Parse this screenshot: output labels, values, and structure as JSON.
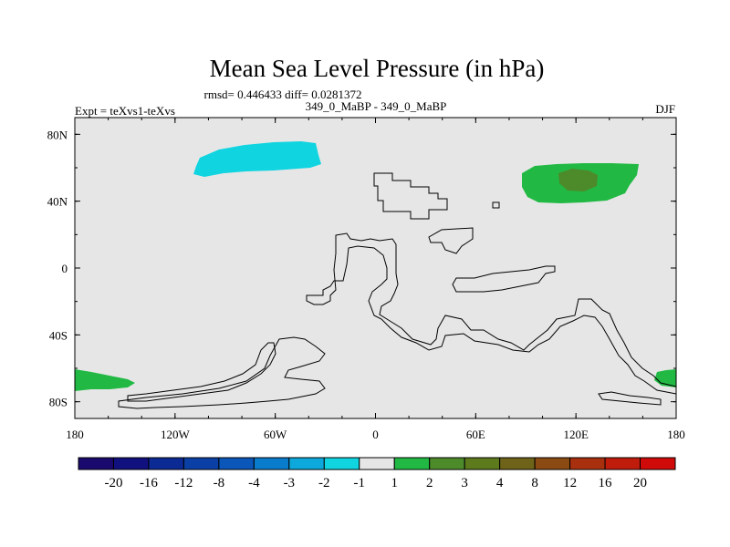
{
  "chart_data": {
    "type": "heatmap",
    "title": "Mean Sea Level Pressure (in hPa)",
    "stats_line": "rmsd= 0.446433 diff= 0.0281372",
    "left_label": "Expt = teXvs1-teXvs",
    "center_label": "349_0_MaBP - 349_0_MaBP",
    "right_label": "DJF",
    "x_ticks": [
      "180",
      "120W",
      "60W",
      "0",
      "60E",
      "120E",
      "180"
    ],
    "x_tick_values": [
      -180,
      -120,
      -60,
      0,
      60,
      120,
      180
    ],
    "y_ticks": [
      "80N",
      "40N",
      "0",
      "40S",
      "80S"
    ],
    "y_tick_values": [
      80,
      40,
      0,
      -40,
      -80
    ],
    "xlim": [
      -180,
      180
    ],
    "ylim": [
      -90,
      90
    ],
    "colorbar": {
      "levels": [
        "-20",
        "-16",
        "-12",
        "-8",
        "-4",
        "-3",
        "-2",
        "-1",
        "1",
        "2",
        "3",
        "4",
        "8",
        "12",
        "16",
        "20"
      ],
      "colors": [
        "#1a0a6e",
        "#10107e",
        "#0b2a94",
        "#0a3fa6",
        "#0b56b9",
        "#0a7ccc",
        "#0ea9dc",
        "#10d4e0",
        "#e6e6e6",
        "#21b944",
        "#4d8a2a",
        "#5d7a1c",
        "#6e6318",
        "#8a4a12",
        "#a8300e",
        "#c01c0c",
        "#d00a08"
      ]
    },
    "anomalies": [
      {
        "label": "negative anomaly over northern Pacific",
        "category": "-1",
        "color": "#10d4e0",
        "lon_range": [
          -110,
          -35
        ],
        "lat_range": [
          55,
          75
        ]
      },
      {
        "label": "positive anomaly over eastern Asia",
        "category": "2",
        "color": "#21b944",
        "lon_range": [
          87,
          165
        ],
        "lat_range": [
          40,
          63
        ]
      },
      {
        "label": "stronger anomaly core over eastern Asia",
        "category": "3",
        "color": "#4d8a2a",
        "lon_range": [
          108,
          130
        ],
        "lat_range": [
          45,
          60
        ]
      },
      {
        "label": "positive anomaly at southern dateline west",
        "category": "2",
        "color": "#21b944",
        "lon_range": [
          -180,
          -150
        ],
        "lat_range": [
          -72,
          -60
        ]
      },
      {
        "label": "positive anomaly at southern dateline east",
        "category": "2",
        "color": "#21b944",
        "lon_range": [
          168,
          180
        ],
        "lat_range": [
          -72,
          -60
        ]
      }
    ]
  }
}
